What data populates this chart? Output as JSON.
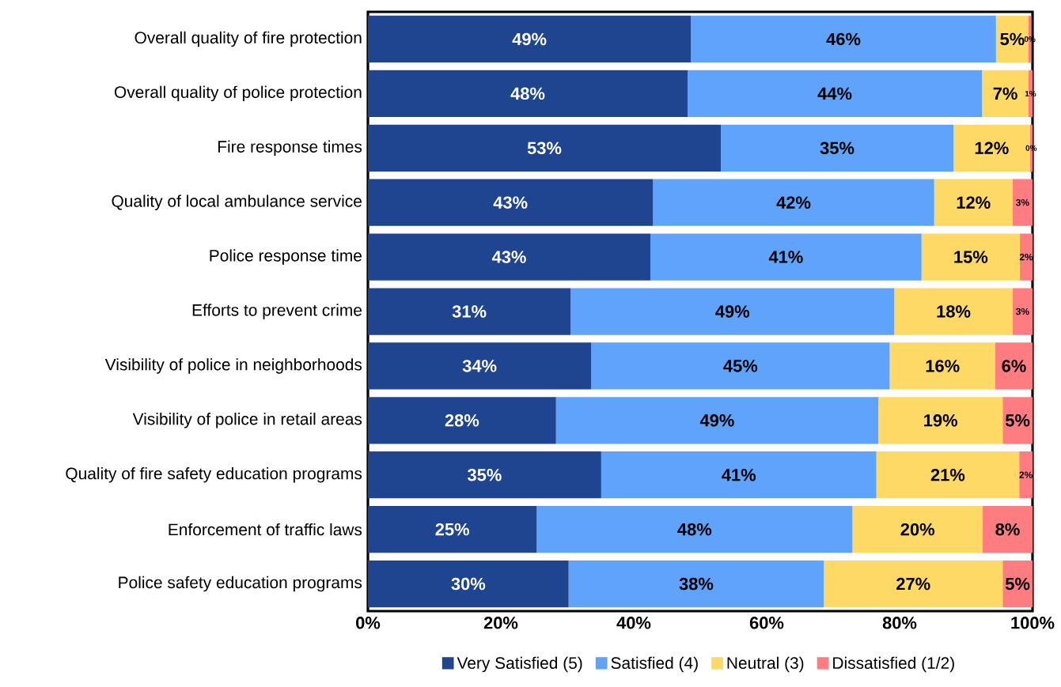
{
  "chart_data": {
    "type": "bar",
    "orientation": "horizontal",
    "stacked": true,
    "categories": [
      "Overall quality of fire protection",
      "Overall quality of police protection",
      "Fire response times",
      "Quality of local ambulance service",
      "Police response time",
      "Efforts to prevent crime",
      "Visibility of police in neighborhoods",
      "Visibility of police in retail areas",
      "Quality of fire safety education programs",
      "Enforcement of traffic laws",
      "Police safety education programs"
    ],
    "series": [
      {
        "name": "Very Satisfied (5)",
        "color": "#1f4591",
        "values": [
          48.6,
          48.1,
          53.1,
          42.9,
          42.5,
          30.5,
          33.6,
          28.3,
          35.1,
          25.4,
          30.2
        ],
        "value_labels": [
          "49%",
          "48%",
          "53%",
          "43%",
          "43%",
          "31%",
          "34%",
          "28%",
          "35%",
          "25%",
          "30%"
        ]
      },
      {
        "name": "Satisfied (4)",
        "color": "#5fa3fc",
        "values": [
          45.9,
          44.3,
          35.0,
          42.3,
          40.8,
          48.7,
          44.9,
          48.5,
          41.4,
          47.5,
          38.4
        ],
        "value_labels": [
          "46%",
          "44%",
          "35%",
          "42%",
          "41%",
          "49%",
          "45%",
          "49%",
          "41%",
          "48%",
          "38%"
        ]
      },
      {
        "name": "Neutral (3)",
        "color": "#ffd966",
        "values": [
          4.9,
          7.0,
          11.5,
          11.8,
          14.8,
          17.8,
          15.9,
          18.7,
          21.5,
          19.6,
          26.9
        ],
        "value_labels": [
          "5%",
          "7%",
          "12%",
          "12%",
          "15%",
          "18%",
          "16%",
          "19%",
          "21%",
          "20%",
          "27%"
        ]
      },
      {
        "name": "Dissatisfied (1/2)",
        "color": "#ff7c80",
        "values": [
          0.4,
          0.6,
          0.4,
          3.0,
          1.9,
          3.0,
          5.6,
          4.5,
          2.0,
          7.5,
          4.5
        ],
        "value_labels": [
          "0%",
          "1%",
          "0%",
          "3%",
          "2%",
          "3%",
          "6%",
          "5%",
          "2%",
          "8%",
          "5%"
        ]
      }
    ],
    "xlim": [
      0,
      100
    ],
    "xticks": [
      {
        "value": 0,
        "label": "0%"
      },
      {
        "value": 20,
        "label": "20%"
      },
      {
        "value": 40,
        "label": "40%"
      },
      {
        "value": 60,
        "label": "60%"
      },
      {
        "value": 80,
        "label": "80%"
      },
      {
        "value": 100,
        "label": "100%"
      }
    ],
    "legend": "bottom"
  }
}
